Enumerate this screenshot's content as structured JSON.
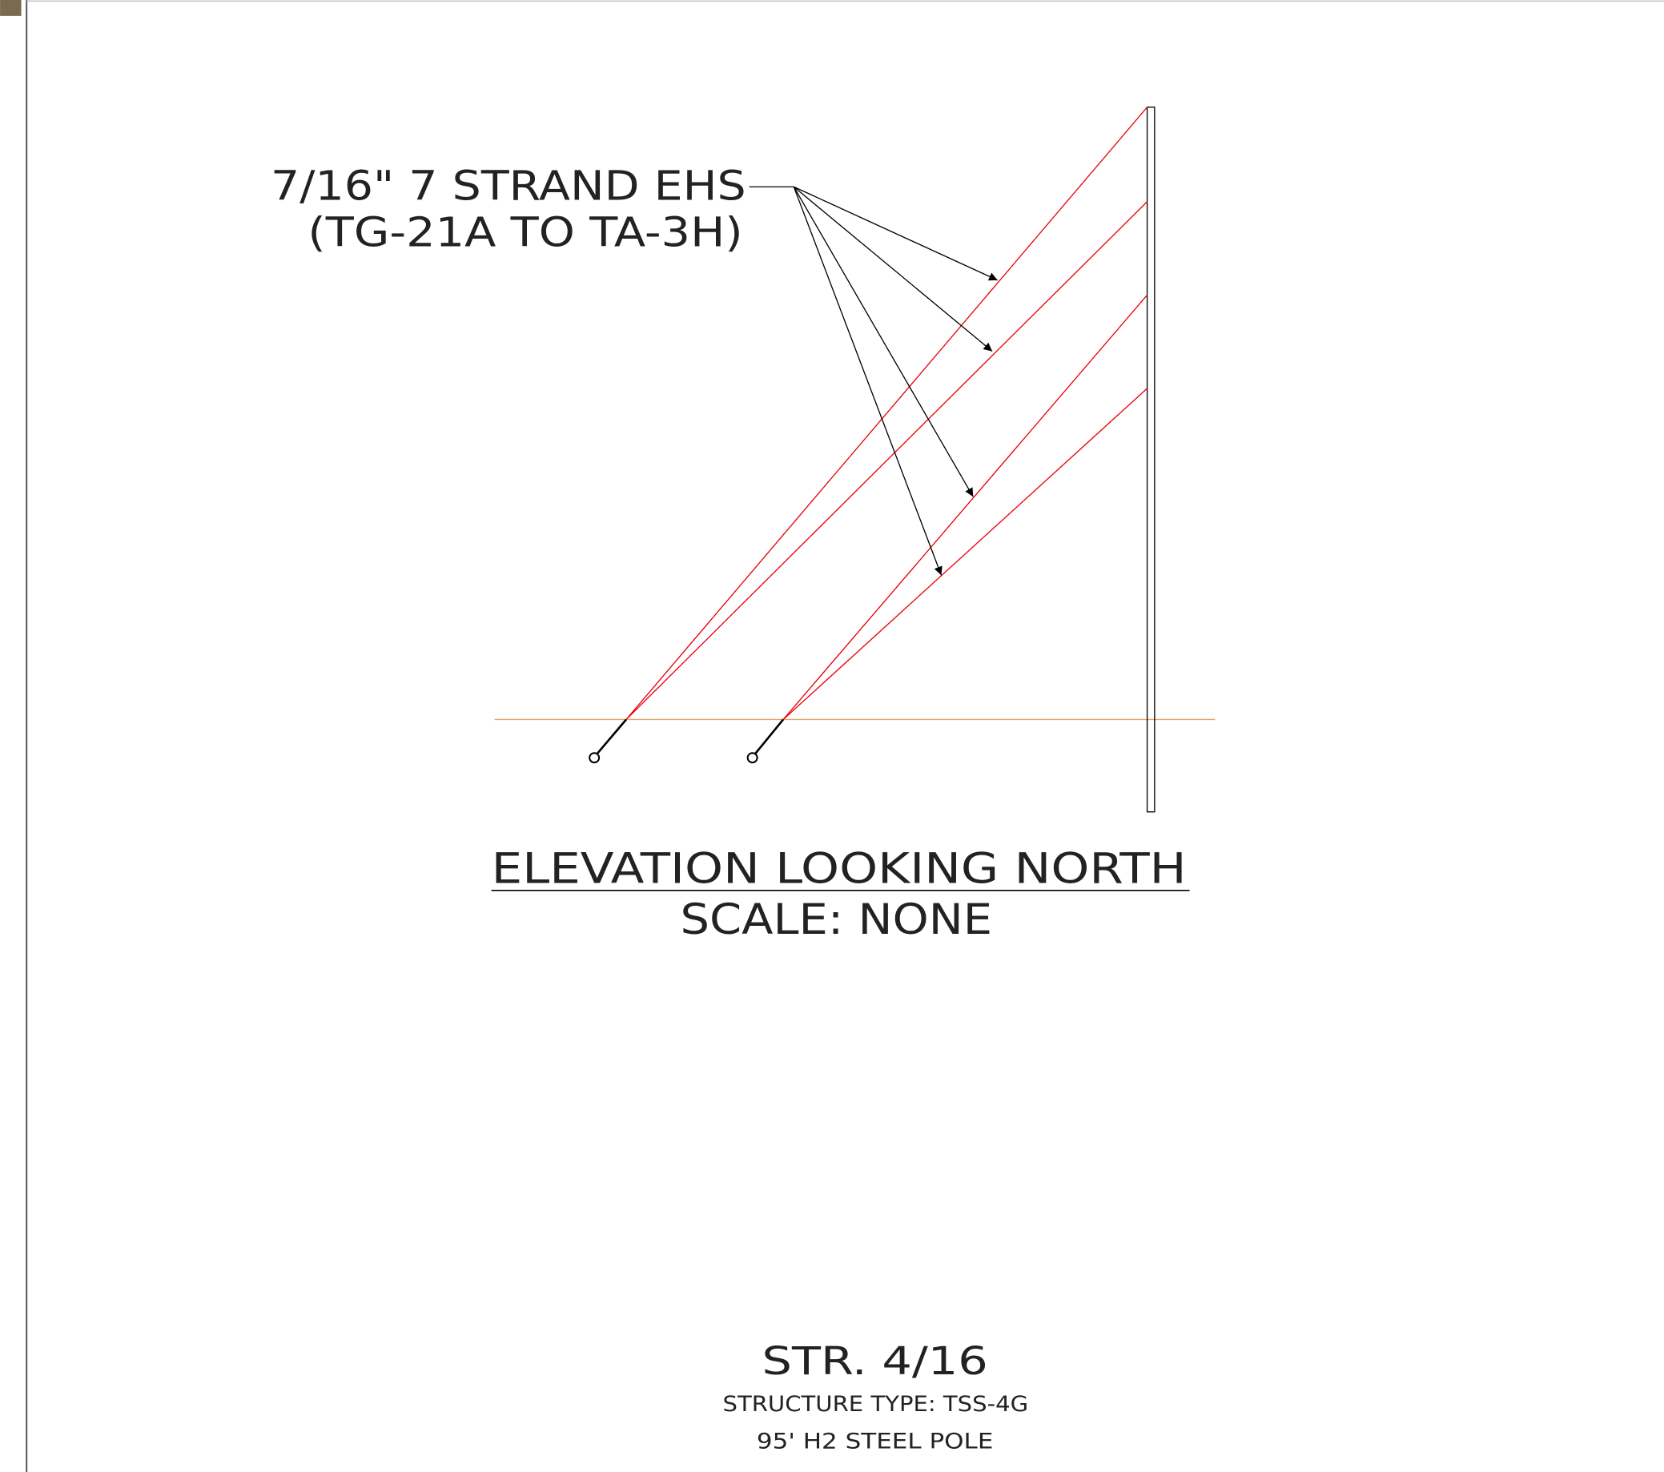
{
  "callout": {
    "line1": "7/16\" 7 STRAND EHS",
    "line2": "(TG-21A TO TA-3H)"
  },
  "view": {
    "title": "ELEVATION LOOKING NORTH",
    "scale": "SCALE: NONE"
  },
  "structure": {
    "id": "STR. 4/16",
    "type": "STRUCTURE TYPE: TSS-4G",
    "pole": "95' H2 STEEL POLE"
  }
}
